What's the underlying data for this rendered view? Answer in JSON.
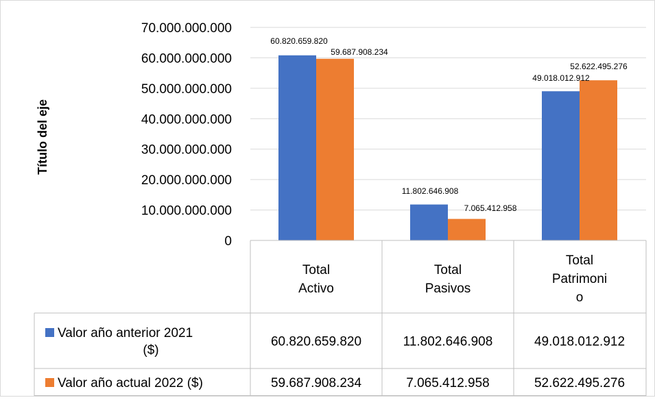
{
  "chart_data": {
    "type": "bar",
    "ylabel": "Título del eje",
    "xlabel": "",
    "ylim": [
      0,
      70000000000
    ],
    "ytick_values": [
      0,
      10000000000,
      20000000000,
      30000000000,
      40000000000,
      50000000000,
      60000000000,
      70000000000
    ],
    "ytick_labels": [
      "0",
      "10.000.000.000",
      "20.000.000.000",
      "30.000.000.000",
      "40.000.000.000",
      "50.000.000.000",
      "60.000.000.000",
      "70.000.000.000"
    ],
    "categories": [
      "Total Activo",
      "Total Pasivos",
      "Total Patrimonio"
    ],
    "category_label_lines": [
      [
        "Total",
        "Activo"
      ],
      [
        "Total",
        "Pasivos"
      ],
      [
        "Total",
        "Patrimoni",
        "o"
      ]
    ],
    "series": [
      {
        "name": "Valor año anterior 2021 ($)",
        "legend_lines": [
          "Valor año anterior 2021",
          "($)"
        ],
        "color": "#4472C4",
        "values": [
          60820659820,
          11802646908,
          49018012912
        ],
        "labels": [
          "60.820.659.820",
          "11.802.646.908",
          "49.018.012.912"
        ]
      },
      {
        "name": "Valor año actual 2022 ($)",
        "legend_lines": [
          "Valor año actual 2022 ($)"
        ],
        "color": "#ED7D31",
        "values": [
          59687908234,
          7065412958,
          52622495276
        ],
        "labels": [
          "59.687.908.234",
          "7.065.412.958",
          "52.622.495.276"
        ]
      }
    ],
    "grid": true,
    "legend": "data-table",
    "colors": {
      "gridline": "#D9D9D9",
      "table_border": "#BFBFBF",
      "frame_border": "#D9D9D9"
    }
  }
}
